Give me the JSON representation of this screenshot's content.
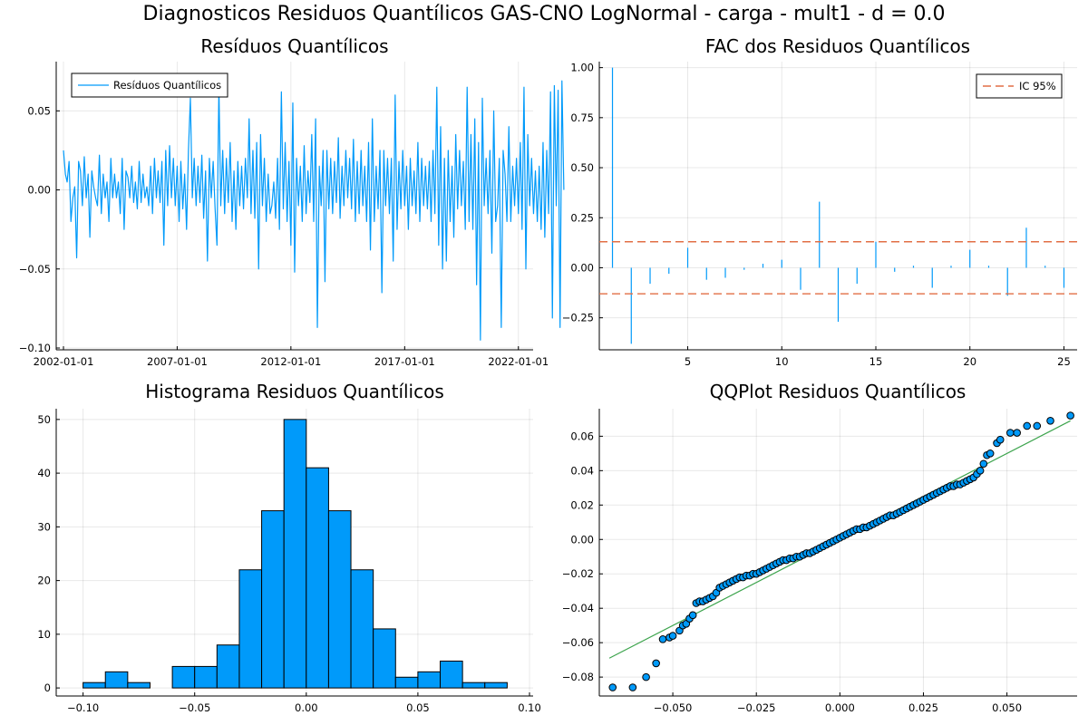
{
  "suptitle": "Diagnosticos Residuos  Quantílicos GAS-CNO LogNormal - carga - mult1 - d = 0.0",
  "colors": {
    "series": "#009AFA",
    "ci": "#E26F46",
    "qqline": "#3DA44D"
  },
  "chart_data": [
    {
      "type": "line",
      "title": "Resíduos  Quantílicos",
      "legend": {
        "entries": [
          "Resíduos Quantílicos"
        ],
        "position": "top-left"
      },
      "grid": true,
      "x_tick_labels": [
        "2002-01-01",
        "2007-01-01",
        "2012-01-01",
        "2017-01-01",
        "2022-01-01"
      ],
      "x_ticks": [
        "2002-01-01",
        "2007-01-01",
        "2012-01-01",
        "2017-01-01",
        "2022-01-01"
      ],
      "y_tick_labels": [
        "0.05",
        "0.00",
        "−0.05",
        "−0.10"
      ],
      "y_ticks": [
        0.05,
        0.0,
        -0.05,
        -0.1
      ],
      "xlim": [
        "2002-01-01",
        "2022-05-01"
      ],
      "ylim": [
        -0.1,
        0.08
      ],
      "series": [
        {
          "name": "Resíduos Quantílicos",
          "start": "2002-01-01",
          "frequency": "monthly",
          "values": [
            0.025,
            0.01,
            0.005,
            0.018,
            -0.02,
            -0.005,
            0.002,
            -0.043,
            0.018,
            0.012,
            -0.01,
            0.021,
            -0.005,
            0.01,
            -0.03,
            0.012,
            0.002,
            -0.005,
            -0.01,
            0.022,
            -0.015,
            0.01,
            -0.005,
            0.005,
            -0.02,
            0.02,
            -0.005,
            0.01,
            -0.005,
            0.005,
            -0.015,
            0.02,
            -0.025,
            0.012,
            0.008,
            -0.005,
            0.015,
            -0.008,
            0.005,
            -0.012,
            0.018,
            -0.008,
            0.01,
            -0.005,
            0.002,
            -0.01,
            0.015,
            -0.015,
            0.02,
            -0.005,
            0.012,
            -0.008,
            0.018,
            -0.035,
            0.025,
            -0.01,
            0.028,
            -0.005,
            0.02,
            -0.01,
            0.015,
            -0.02,
            0.018,
            -0.012,
            0.01,
            -0.025,
            0.025,
            0.058,
            -0.005,
            0.02,
            -0.01,
            0.015,
            -0.008,
            0.022,
            -0.018,
            0.012,
            -0.045,
            0.02,
            -0.005,
            0.018,
            -0.012,
            -0.035,
            0.065,
            -0.01,
            0.025,
            -0.015,
            0.02,
            -0.008,
            0.03,
            -0.02,
            0.012,
            -0.025,
            0.018,
            -0.01,
            0.015,
            -0.012,
            0.02,
            -0.005,
            0.045,
            -0.015,
            0.025,
            -0.018,
            0.03,
            -0.05,
            0.035,
            -0.01,
            0.02,
            -0.02,
            0.01,
            -0.015,
            -0.01,
            0.005,
            -0.018,
            0.02,
            -0.025,
            0.062,
            -0.012,
            0.03,
            -0.02,
            0.018,
            -0.035,
            0.055,
            -0.052,
            0.02,
            -0.01,
            0.015,
            -0.02,
            0.028,
            -0.015,
            0.012,
            -0.008,
            0.035,
            -0.02,
            0.045,
            -0.087,
            0.015,
            -0.01,
            0.025,
            -0.058,
            0.025,
            -0.012,
            0.02,
            -0.015,
            0.018,
            -0.008,
            0.033,
            -0.018,
            0.015,
            -0.01,
            0.025,
            -0.005,
            0.02,
            -0.012,
            0.032,
            -0.02,
            0.018,
            -0.015,
            0.025,
            -0.01,
            0.015,
            -0.02,
            0.03,
            -0.038,
            0.045,
            -0.02,
            0.015,
            -0.012,
            0.025,
            -0.065,
            0.025,
            -0.01,
            0.02,
            -0.015,
            0.02,
            -0.045,
            0.06,
            -0.025,
            0.018,
            -0.012,
            0.025,
            -0.01,
            0.015,
            -0.025,
            0.02,
            -0.01,
            0.012,
            -0.015,
            0.03,
            -0.02,
            0.02,
            -0.01,
            0.015,
            -0.012,
            0.018,
            -0.02,
            0.025,
            -0.015,
            0.065,
            -0.035,
            0.04,
            -0.05,
            0.02,
            -0.045,
            0.025,
            -0.02,
            0.015,
            -0.03,
            0.035,
            -0.012,
            0.025,
            -0.01,
            0.018,
            -0.025,
            0.065,
            -0.02,
            0.035,
            -0.025,
            0.045,
            -0.06,
            0.03,
            -0.095,
            0.058,
            -0.01,
            0.02,
            -0.015,
            0.025,
            -0.04,
            0.05,
            -0.02,
            -0.01,
            0.02,
            -0.087,
            0.025,
            0.01,
            -0.02,
            0.04,
            -0.02,
            0.015,
            -0.01,
            0.02,
            -0.015,
            0.03,
            -0.025,
            0.065,
            -0.05,
            0.035,
            -0.01,
            0.02,
            -0.015,
            0.012,
            -0.02,
            0.015,
            -0.025,
            0.03,
            -0.03,
            0.025,
            -0.015,
            0.062,
            -0.081,
            0.066,
            -0.01,
            0.063,
            -0.087,
            0.069,
            0.0
          ]
        }
      ]
    },
    {
      "type": "bar",
      "title": "FAC dos Residuos Quantílicos",
      "legend": {
        "entries": [
          "IC 95%"
        ],
        "position": "top-right"
      },
      "grid": true,
      "x_tick_labels": [
        "5",
        "10",
        "15",
        "20",
        "25"
      ],
      "x_ticks": [
        5,
        10,
        15,
        20,
        25
      ],
      "y_tick_labels": [
        "1.00",
        "0.75",
        "0.50",
        "0.25",
        "0.00",
        "−0.25"
      ],
      "y_ticks": [
        1.0,
        0.75,
        0.5,
        0.25,
        0.0,
        -0.25
      ],
      "xlim": [
        0.3,
        25.7
      ],
      "ylim": [
        -0.41,
        1.03
      ],
      "lags": [
        1,
        2,
        3,
        4,
        5,
        6,
        7,
        8,
        9,
        10,
        11,
        12,
        13,
        14,
        15,
        16,
        17,
        18,
        19,
        20,
        21,
        22,
        23,
        24,
        25
      ],
      "values": [
        1.0,
        -0.38,
        -0.08,
        -0.03,
        0.1,
        -0.06,
        -0.05,
        -0.01,
        0.02,
        0.04,
        -0.11,
        0.33,
        -0.27,
        -0.08,
        0.13,
        -0.02,
        0.01,
        -0.1,
        0.01,
        0.09,
        0.01,
        -0.14,
        0.2,
        0.01,
        -0.1
      ],
      "ci": [
        0.13,
        -0.13
      ]
    },
    {
      "type": "bar",
      "title": "Histograma Residuos Quantílicos",
      "grid": true,
      "x_tick_labels": [
        "−0.10",
        "−0.05",
        "0.00",
        "0.05",
        "0.10"
      ],
      "x_ticks": [
        -0.1,
        -0.05,
        0.0,
        0.05,
        0.1
      ],
      "y_tick_labels": [
        "0",
        "10",
        "20",
        "30",
        "40",
        "50"
      ],
      "y_ticks": [
        0,
        10,
        20,
        30,
        40,
        50
      ],
      "xlim": [
        -0.11,
        0.1
      ],
      "ylim": [
        -1.5,
        52
      ],
      "bin_edges": [
        -0.1,
        -0.09,
        -0.08,
        -0.07,
        -0.06,
        -0.05,
        -0.04,
        -0.03,
        -0.02,
        -0.01,
        0.0,
        0.01,
        0.02,
        0.03,
        0.04,
        0.05,
        0.06,
        0.07,
        0.08,
        0.09
      ],
      "counts": [
        1,
        3,
        1,
        0,
        4,
        4,
        8,
        22,
        33,
        50,
        41,
        33,
        22,
        11,
        2,
        3,
        5,
        1,
        1
      ]
    },
    {
      "type": "scatter",
      "title": "QQPlot Residuos Quantílicos",
      "grid": true,
      "x_tick_labels": [
        "−0.050",
        "−0.025",
        "0.000",
        "0.025",
        "0.050"
      ],
      "x_ticks": [
        -0.05,
        -0.025,
        0.0,
        0.025,
        0.05
      ],
      "y_tick_labels": [
        "0.06",
        "0.04",
        "0.02",
        "0.00",
        "−0.02",
        "−0.04",
        "−0.06",
        "−0.08"
      ],
      "y_ticks": [
        0.06,
        0.04,
        0.02,
        0.0,
        -0.02,
        -0.04,
        -0.06,
        -0.08
      ],
      "xlim": [
        -0.072,
        0.071
      ],
      "ylim": [
        -0.091,
        0.076
      ],
      "reference_line": {
        "from": [
          -0.069,
          -0.069
        ],
        "to": [
          0.069,
          0.069
        ]
      },
      "points": [
        [
          -0.068,
          -0.086
        ],
        [
          -0.062,
          -0.086
        ],
        [
          -0.058,
          -0.08
        ],
        [
          -0.055,
          -0.072
        ],
        [
          -0.053,
          -0.058
        ],
        [
          -0.051,
          -0.057
        ],
        [
          -0.05,
          -0.056
        ],
        [
          -0.048,
          -0.053
        ],
        [
          -0.047,
          -0.05
        ],
        [
          -0.046,
          -0.049
        ],
        [
          -0.045,
          -0.046
        ],
        [
          -0.044,
          -0.044
        ],
        [
          -0.043,
          -0.037
        ],
        [
          -0.042,
          -0.036
        ],
        [
          -0.041,
          -0.036
        ],
        [
          -0.04,
          -0.035
        ],
        [
          -0.039,
          -0.034
        ],
        [
          -0.038,
          -0.033
        ],
        [
          -0.037,
          -0.031
        ],
        [
          -0.036,
          -0.028
        ],
        [
          -0.035,
          -0.027
        ],
        [
          -0.034,
          -0.026
        ],
        [
          -0.033,
          -0.025
        ],
        [
          -0.032,
          -0.024
        ],
        [
          -0.031,
          -0.023
        ],
        [
          -0.03,
          -0.022
        ],
        [
          -0.029,
          -0.022
        ],
        [
          -0.028,
          -0.021
        ],
        [
          -0.027,
          -0.021
        ],
        [
          -0.026,
          -0.02
        ],
        [
          -0.025,
          -0.02
        ],
        [
          -0.024,
          -0.019
        ],
        [
          -0.023,
          -0.018
        ],
        [
          -0.022,
          -0.017
        ],
        [
          -0.021,
          -0.016
        ],
        [
          -0.02,
          -0.015
        ],
        [
          -0.019,
          -0.014
        ],
        [
          -0.018,
          -0.013
        ],
        [
          -0.017,
          -0.012
        ],
        [
          -0.016,
          -0.012
        ],
        [
          -0.015,
          -0.011
        ],
        [
          -0.014,
          -0.011
        ],
        [
          -0.013,
          -0.01
        ],
        [
          -0.012,
          -0.01
        ],
        [
          -0.011,
          -0.009
        ],
        [
          -0.01,
          -0.008
        ],
        [
          -0.009,
          -0.008
        ],
        [
          -0.008,
          -0.007
        ],
        [
          -0.007,
          -0.006
        ],
        [
          -0.006,
          -0.005
        ],
        [
          -0.005,
          -0.004
        ],
        [
          -0.004,
          -0.003
        ],
        [
          -0.003,
          -0.002
        ],
        [
          -0.002,
          -0.001
        ],
        [
          -0.001,
          0.0
        ],
        [
          0.0,
          0.001
        ],
        [
          0.001,
          0.002
        ],
        [
          0.002,
          0.003
        ],
        [
          0.003,
          0.004
        ],
        [
          0.004,
          0.005
        ],
        [
          0.005,
          0.006
        ],
        [
          0.006,
          0.006
        ],
        [
          0.007,
          0.007
        ],
        [
          0.008,
          0.007
        ],
        [
          0.009,
          0.008
        ],
        [
          0.01,
          0.009
        ],
        [
          0.011,
          0.01
        ],
        [
          0.012,
          0.011
        ],
        [
          0.013,
          0.012
        ],
        [
          0.014,
          0.013
        ],
        [
          0.015,
          0.014
        ],
        [
          0.016,
          0.014
        ],
        [
          0.017,
          0.015
        ],
        [
          0.018,
          0.016
        ],
        [
          0.019,
          0.017
        ],
        [
          0.02,
          0.018
        ],
        [
          0.021,
          0.019
        ],
        [
          0.022,
          0.02
        ],
        [
          0.023,
          0.021
        ],
        [
          0.024,
          0.022
        ],
        [
          0.025,
          0.023
        ],
        [
          0.026,
          0.024
        ],
        [
          0.027,
          0.025
        ],
        [
          0.028,
          0.026
        ],
        [
          0.029,
          0.027
        ],
        [
          0.03,
          0.028
        ],
        [
          0.031,
          0.029
        ],
        [
          0.032,
          0.03
        ],
        [
          0.033,
          0.031
        ],
        [
          0.034,
          0.031
        ],
        [
          0.035,
          0.032
        ],
        [
          0.036,
          0.032
        ],
        [
          0.037,
          0.033
        ],
        [
          0.038,
          0.034
        ],
        [
          0.039,
          0.035
        ],
        [
          0.04,
          0.036
        ],
        [
          0.041,
          0.038
        ],
        [
          0.042,
          0.04
        ],
        [
          0.043,
          0.044
        ],
        [
          0.044,
          0.049
        ],
        [
          0.045,
          0.05
        ],
        [
          0.047,
          0.056
        ],
        [
          0.048,
          0.058
        ],
        [
          0.051,
          0.062
        ],
        [
          0.053,
          0.062
        ],
        [
          0.056,
          0.066
        ],
        [
          0.059,
          0.066
        ],
        [
          0.063,
          0.069
        ],
        [
          0.069,
          0.072
        ]
      ]
    }
  ]
}
